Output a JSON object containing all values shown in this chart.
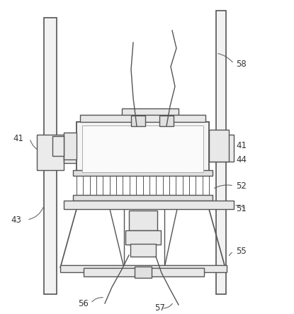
{
  "figure_width": 4.15,
  "figure_height": 4.43,
  "dpi": 100,
  "bg_color": "#ffffff",
  "line_color": "#555555",
  "label_color": "#333333",
  "label_fs": 8.5
}
